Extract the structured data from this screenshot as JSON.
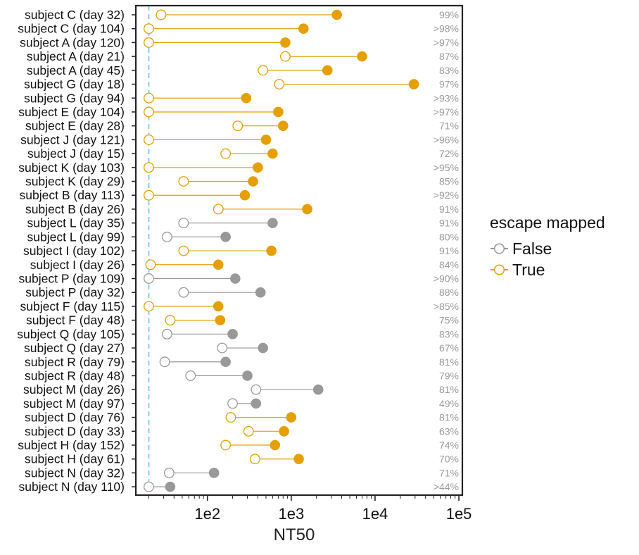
{
  "chart_data": {
    "type": "scatter",
    "xlabel": "NT50",
    "x_scale": "log",
    "xlim": [
      14,
      110000
    ],
    "x_ticks": [
      {
        "value": 100,
        "label": "1e2"
      },
      {
        "value": 1000,
        "label": "1e3"
      },
      {
        "value": 10000,
        "label": "1e4"
      },
      {
        "value": 100000,
        "label": "1e5"
      }
    ],
    "detection_limit": 20,
    "legend": {
      "title": "escape mapped",
      "placement": "right",
      "entries": [
        {
          "label": "False",
          "color": "#999999"
        },
        {
          "label": "True",
          "color": "#E69F00"
        }
      ]
    },
    "colors": {
      "false": "#999999",
      "true": "#E69F00",
      "limit_line": "#87CEEB",
      "pct_text": "#999999",
      "axis": "#222222"
    },
    "rows": [
      {
        "label": "subject C (day 32)",
        "x_open": 28,
        "x_filled": 3500,
        "escape": true,
        "pct": "99%"
      },
      {
        "label": "subject C (day 104)",
        "x_open": 20,
        "x_filled": 1400,
        "escape": true,
        "pct": ">98%"
      },
      {
        "label": "subject A (day 120)",
        "x_open": 20,
        "x_filled": 850,
        "escape": true,
        "pct": ">97%"
      },
      {
        "label": "subject A (day 21)",
        "x_open": 850,
        "x_filled": 7000,
        "escape": true,
        "pct": "87%"
      },
      {
        "label": "subject A (day 45)",
        "x_open": 460,
        "x_filled": 2700,
        "escape": true,
        "pct": "83%"
      },
      {
        "label": "subject G (day 18)",
        "x_open": 720,
        "x_filled": 29000,
        "escape": true,
        "pct": "97%"
      },
      {
        "label": "subject G (day 94)",
        "x_open": 20,
        "x_filled": 290,
        "escape": true,
        "pct": ">93%"
      },
      {
        "label": "subject E (day 104)",
        "x_open": 20,
        "x_filled": 700,
        "escape": true,
        "pct": ">97%"
      },
      {
        "label": "subject E (day 28)",
        "x_open": 230,
        "x_filled": 800,
        "escape": true,
        "pct": "71%"
      },
      {
        "label": "subject J (day 121)",
        "x_open": 20,
        "x_filled": 500,
        "escape": true,
        "pct": ">96%"
      },
      {
        "label": "subject J (day 15)",
        "x_open": 165,
        "x_filled": 600,
        "escape": true,
        "pct": "72%"
      },
      {
        "label": "subject K (day 103)",
        "x_open": 20,
        "x_filled": 400,
        "escape": true,
        "pct": ">95%"
      },
      {
        "label": "subject K (day 29)",
        "x_open": 52,
        "x_filled": 350,
        "escape": true,
        "pct": "85%"
      },
      {
        "label": "subject B (day 113)",
        "x_open": 20,
        "x_filled": 280,
        "escape": true,
        "pct": ">92%"
      },
      {
        "label": "subject B (day 26)",
        "x_open": 135,
        "x_filled": 1550,
        "escape": true,
        "pct": "91%"
      },
      {
        "label": "subject L (day 35)",
        "x_open": 52,
        "x_filled": 600,
        "escape": false,
        "pct": "91%"
      },
      {
        "label": "subject L (day 99)",
        "x_open": 33,
        "x_filled": 165,
        "escape": false,
        "pct": "80%"
      },
      {
        "label": "subject I (day 102)",
        "x_open": 52,
        "x_filled": 580,
        "escape": true,
        "pct": "91%"
      },
      {
        "label": "subject I (day 26)",
        "x_open": 21,
        "x_filled": 135,
        "escape": true,
        "pct": "84%"
      },
      {
        "label": "subject P (day 109)",
        "x_open": 20,
        "x_filled": 215,
        "escape": false,
        "pct": ">90%"
      },
      {
        "label": "subject P (day 32)",
        "x_open": 52,
        "x_filled": 430,
        "escape": false,
        "pct": "88%"
      },
      {
        "label": "subject F (day 115)",
        "x_open": 20,
        "x_filled": 135,
        "escape": true,
        "pct": ">85%"
      },
      {
        "label": "subject F (day 48)",
        "x_open": 36,
        "x_filled": 142,
        "escape": true,
        "pct": "75%"
      },
      {
        "label": "subject Q (day 105)",
        "x_open": 33,
        "x_filled": 200,
        "escape": false,
        "pct": "83%"
      },
      {
        "label": "subject Q (day 27)",
        "x_open": 150,
        "x_filled": 460,
        "escape": false,
        "pct": "67%"
      },
      {
        "label": "subject R (day 79)",
        "x_open": 31,
        "x_filled": 165,
        "escape": false,
        "pct": "81%"
      },
      {
        "label": "subject R (day 48)",
        "x_open": 63,
        "x_filled": 300,
        "escape": false,
        "pct": "79%"
      },
      {
        "label": "subject M (day 26)",
        "x_open": 380,
        "x_filled": 2100,
        "escape": false,
        "pct": "81%"
      },
      {
        "label": "subject M (day 97)",
        "x_open": 200,
        "x_filled": 380,
        "escape": false,
        "pct": "49%"
      },
      {
        "label": "subject D (day 76)",
        "x_open": 190,
        "x_filled": 1000,
        "escape": true,
        "pct": "81%"
      },
      {
        "label": "subject D (day 33)",
        "x_open": 310,
        "x_filled": 820,
        "escape": true,
        "pct": "63%"
      },
      {
        "label": "subject H (day 152)",
        "x_open": 165,
        "x_filled": 640,
        "escape": true,
        "pct": "74%"
      },
      {
        "label": "subject H (day 61)",
        "x_open": 370,
        "x_filled": 1230,
        "escape": true,
        "pct": "70%"
      },
      {
        "label": "subject N (day 32)",
        "x_open": 35,
        "x_filled": 120,
        "escape": false,
        "pct": "71%"
      },
      {
        "label": "subject N (day 110)",
        "x_open": 20,
        "x_filled": 36,
        "escape": false,
        "pct": ">44%"
      }
    ]
  }
}
